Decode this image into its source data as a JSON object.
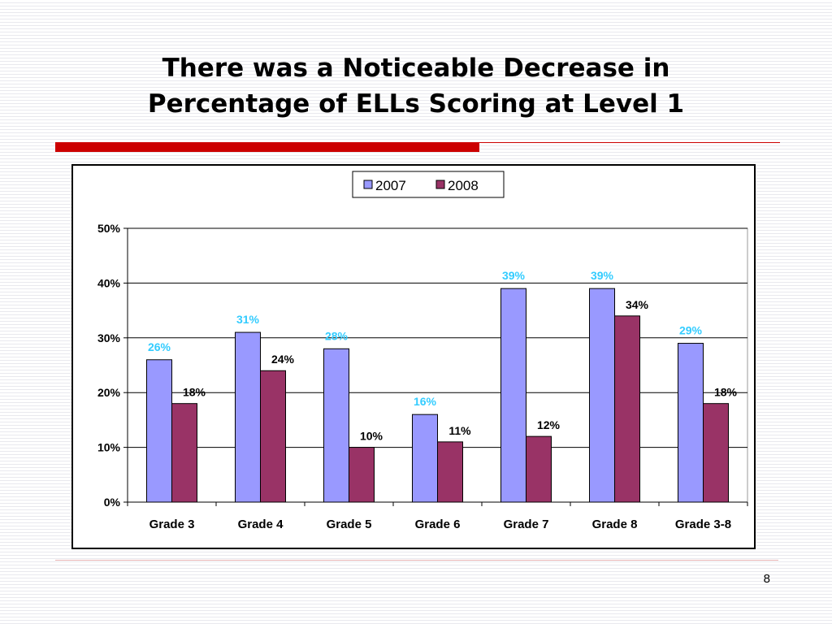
{
  "slide": {
    "title_line1": "There was a Noticeable Decrease in",
    "title_line2": "Percentage of ELLs Scoring at Level 1",
    "page_number": "8"
  },
  "colors": {
    "title_rule": "#cc0000",
    "series_2007": "#9999ff",
    "series_2008": "#993366",
    "label_2007": "#33ccff",
    "label_2008": "#000000"
  },
  "chart_data": {
    "type": "bar",
    "categories": [
      "Grade 3",
      "Grade 4",
      "Grade 5",
      "Grade 6",
      "Grade 7",
      "Grade 8",
      "Grade 3-8"
    ],
    "series": [
      {
        "name": "2007",
        "values": [
          26,
          31,
          28,
          16,
          39,
          39,
          29
        ],
        "labels": [
          "26%",
          "31%",
          "28%",
          "16%",
          "39%",
          "39%",
          "29%"
        ]
      },
      {
        "name": "2008",
        "values": [
          18,
          24,
          10,
          11,
          12,
          34,
          18
        ],
        "labels": [
          "18%",
          "24%",
          "10%",
          "11%",
          "12%",
          "34%",
          "18%"
        ]
      }
    ],
    "ylim": [
      0,
      50
    ],
    "yticks": [
      0,
      10,
      20,
      30,
      40,
      50
    ],
    "ytick_labels": [
      "0%",
      "10%",
      "20%",
      "30%",
      "40%",
      "50%"
    ],
    "grid": true,
    "legend_position": "top-center"
  }
}
